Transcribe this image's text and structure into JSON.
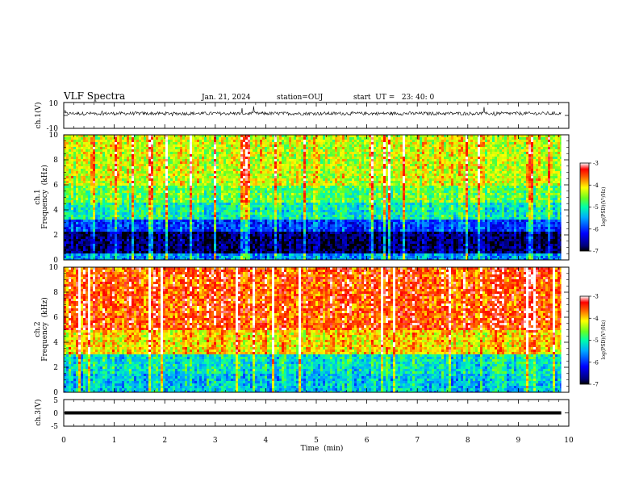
{
  "header": {
    "title": "VLF Spectra",
    "date": "Jan. 21, 2024",
    "station": "station=OUJ",
    "start": "start  UT =   23: 40: 0"
  },
  "chart_data": {
    "type": "heatmap",
    "xlabel": "Time  (min)",
    "xlim": [
      0,
      10
    ],
    "xticks": [
      "0",
      "1",
      "2",
      "3",
      "4",
      "5",
      "6",
      "7",
      "8",
      "9",
      "10"
    ],
    "panels": [
      {
        "id": "ch1-waveform",
        "type": "line",
        "ylabel": "ch.1(V)",
        "ylim": [
          -10,
          10
        ],
        "yticks": [
          "10",
          "-10"
        ],
        "baseline": 1.5,
        "data_end_min": 9.85
      },
      {
        "id": "ch1-spectrogram",
        "type": "heatmap",
        "ylabel_line1": "ch.1",
        "ylabel_line2": "Frequency  (kHz)",
        "ylim": [
          0,
          10
        ],
        "yticks": [
          "0",
          "2",
          "4",
          "6",
          "8",
          "10"
        ],
        "data_end_min": 9.85,
        "bands_log_psd": [
          {
            "f_from": 0,
            "f_to": 0.5,
            "value": -5.6
          },
          {
            "f_from": 0.5,
            "f_to": 2.2,
            "value": -6.8
          },
          {
            "f_from": 2.2,
            "f_to": 3.2,
            "value": -6.0
          },
          {
            "f_from": 3.2,
            "f_to": 4.5,
            "value": -5.1
          },
          {
            "f_from": 4.5,
            "f_to": 6.0,
            "value": -4.7
          },
          {
            "f_from": 6.0,
            "f_to": 10,
            "value": -4.3
          }
        ]
      },
      {
        "id": "ch2-spectrogram",
        "type": "heatmap",
        "ylabel_line1": "ch.2",
        "ylabel_line2": "Frequency  (kHz)",
        "ylim": [
          0,
          10
        ],
        "yticks": [
          "0",
          "2",
          "4",
          "6",
          "8",
          "10"
        ],
        "data_end_min": 9.85,
        "bands_log_psd": [
          {
            "f_from": 0,
            "f_to": 1.5,
            "value": -5.4
          },
          {
            "f_from": 1.5,
            "f_to": 3.0,
            "value": -5.2
          },
          {
            "f_from": 3.0,
            "f_to": 5.0,
            "value": -4.1
          },
          {
            "f_from": 5.0,
            "f_to": 10,
            "value": -3.6
          }
        ]
      },
      {
        "id": "ch3-waveform",
        "type": "line",
        "ylabel": "ch.3(V)",
        "ylim": [
          -5,
          5
        ],
        "yticks": [
          "5",
          "0",
          "-5"
        ],
        "baseline": 0,
        "data_end_min": 9.85
      }
    ],
    "colorbars": [
      {
        "id": "ch1-colorbar",
        "label": "log(PSD)(V²/Hz)",
        "range": [
          -7,
          -3
        ],
        "ticks": [
          "-3",
          "-4",
          "-5",
          "-6",
          "-7"
        ],
        "colormap": [
          "#000000",
          "#0000ff",
          "#00aaff",
          "#00ffcc",
          "#44ff44",
          "#ffff00",
          "#ff8800",
          "#ff0000",
          "#ffffff"
        ]
      },
      {
        "id": "ch2-colorbar",
        "label": "log(PSD)(V²/Hz)",
        "range": [
          -7,
          -3
        ],
        "ticks": [
          "-3",
          "-4",
          "-5",
          "-6",
          "-7"
        ],
        "colormap": [
          "#000000",
          "#0000ff",
          "#00aaff",
          "#00ffcc",
          "#44ff44",
          "#ffff00",
          "#ff8800",
          "#ff0000",
          "#ffffff"
        ]
      }
    ]
  }
}
